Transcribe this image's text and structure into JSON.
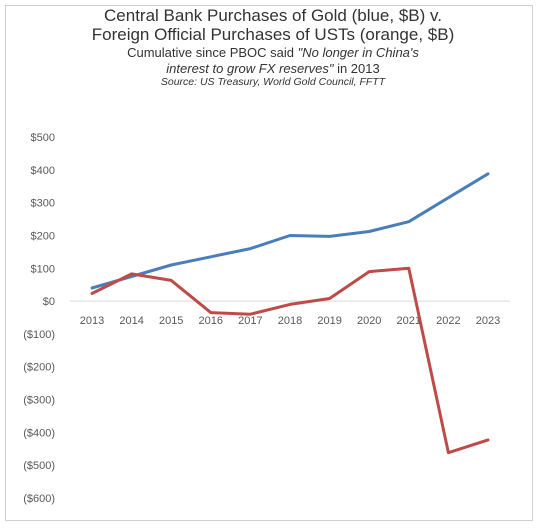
{
  "header": {
    "title_line1": "Central Bank Purchases of Gold (blue, $B) v.",
    "title_line2": "Foreign Official Purchases of USTs (orange, $B)",
    "subtitle_a": "Cumulative since PBOC said ",
    "subtitle_b": "\"No longer in China's",
    "subtitle_c": "interest to grow FX reserves\"",
    "subtitle_d": " in 2013",
    "source": "Source: US Treasury, World Gold Council, FFTT"
  },
  "chart_data": {
    "type": "line",
    "categories": [
      "2013",
      "2014",
      "2015",
      "2016",
      "2017",
      "2018",
      "2019",
      "2020",
      "2021",
      "2022",
      "2023"
    ],
    "series": [
      {
        "name": "Gold",
        "color": "#4a7ebb",
        "values": [
          40,
          75,
          110,
          135,
          160,
          200,
          197,
          212,
          242,
          315,
          388
        ]
      },
      {
        "name": "USTs",
        "color": "#be4b48",
        "values": [
          23,
          83,
          63,
          -35,
          -40,
          -10,
          8,
          90,
          100,
          -462,
          -423
        ]
      }
    ],
    "yticks": [
      500,
      400,
      300,
      200,
      100,
      0,
      -100,
      -200,
      -300,
      -400,
      -500,
      -600
    ],
    "ytick_labels": [
      "$500",
      "$400",
      "$300",
      "$200",
      "$100",
      "$0",
      "($100)",
      "($200)",
      "($300)",
      "($400)",
      "($500)",
      "($600)"
    ],
    "ylim": [
      -600,
      500
    ],
    "grid": false,
    "legend": "none"
  }
}
